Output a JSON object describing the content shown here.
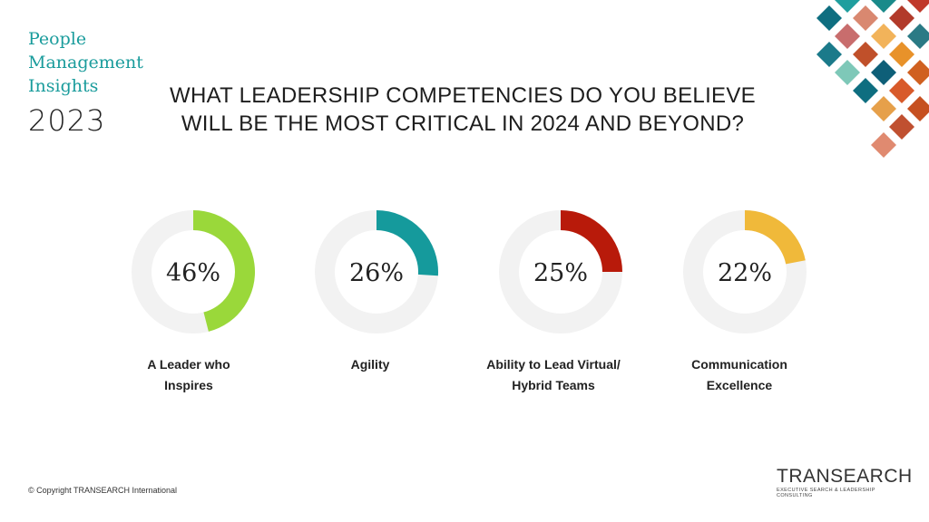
{
  "brand": {
    "lines": [
      "People",
      "Management",
      "Insights"
    ],
    "year": "2023"
  },
  "heading": {
    "line1": "WHAT LEADERSHIP COMPETENCIES DO YOU BELIEVE",
    "line2": "WILL BE THE MOST CRITICAL IN 2024 AND BEYOND?"
  },
  "chart_data": {
    "type": "pie",
    "variant": "donut",
    "track_color": "#f2f2f2",
    "slices": [
      {
        "category_lines": [
          "A Leader who",
          "Inspires"
        ],
        "value": 46,
        "label": "46%",
        "color": "#9ad83a"
      },
      {
        "category_lines": [
          "Agility"
        ],
        "value": 26,
        "label": "26%",
        "color": "#159a9c"
      },
      {
        "category_lines": [
          "Ability to Lead Virtual/",
          "Hybrid Teams"
        ],
        "value": 25,
        "label": "25%",
        "color": "#b81a0a"
      },
      {
        "category_lines": [
          "Communication",
          "Excellence"
        ],
        "value": 22,
        "label": "22%",
        "color": "#f0b93a"
      }
    ]
  },
  "footer": {
    "copyright": "© Copyright TRANSEARCH International",
    "logo_word": "TRANSEARCH",
    "logo_tagline": "EXECUTIVE SEARCH & LEADERSHIP CONSULTING"
  }
}
